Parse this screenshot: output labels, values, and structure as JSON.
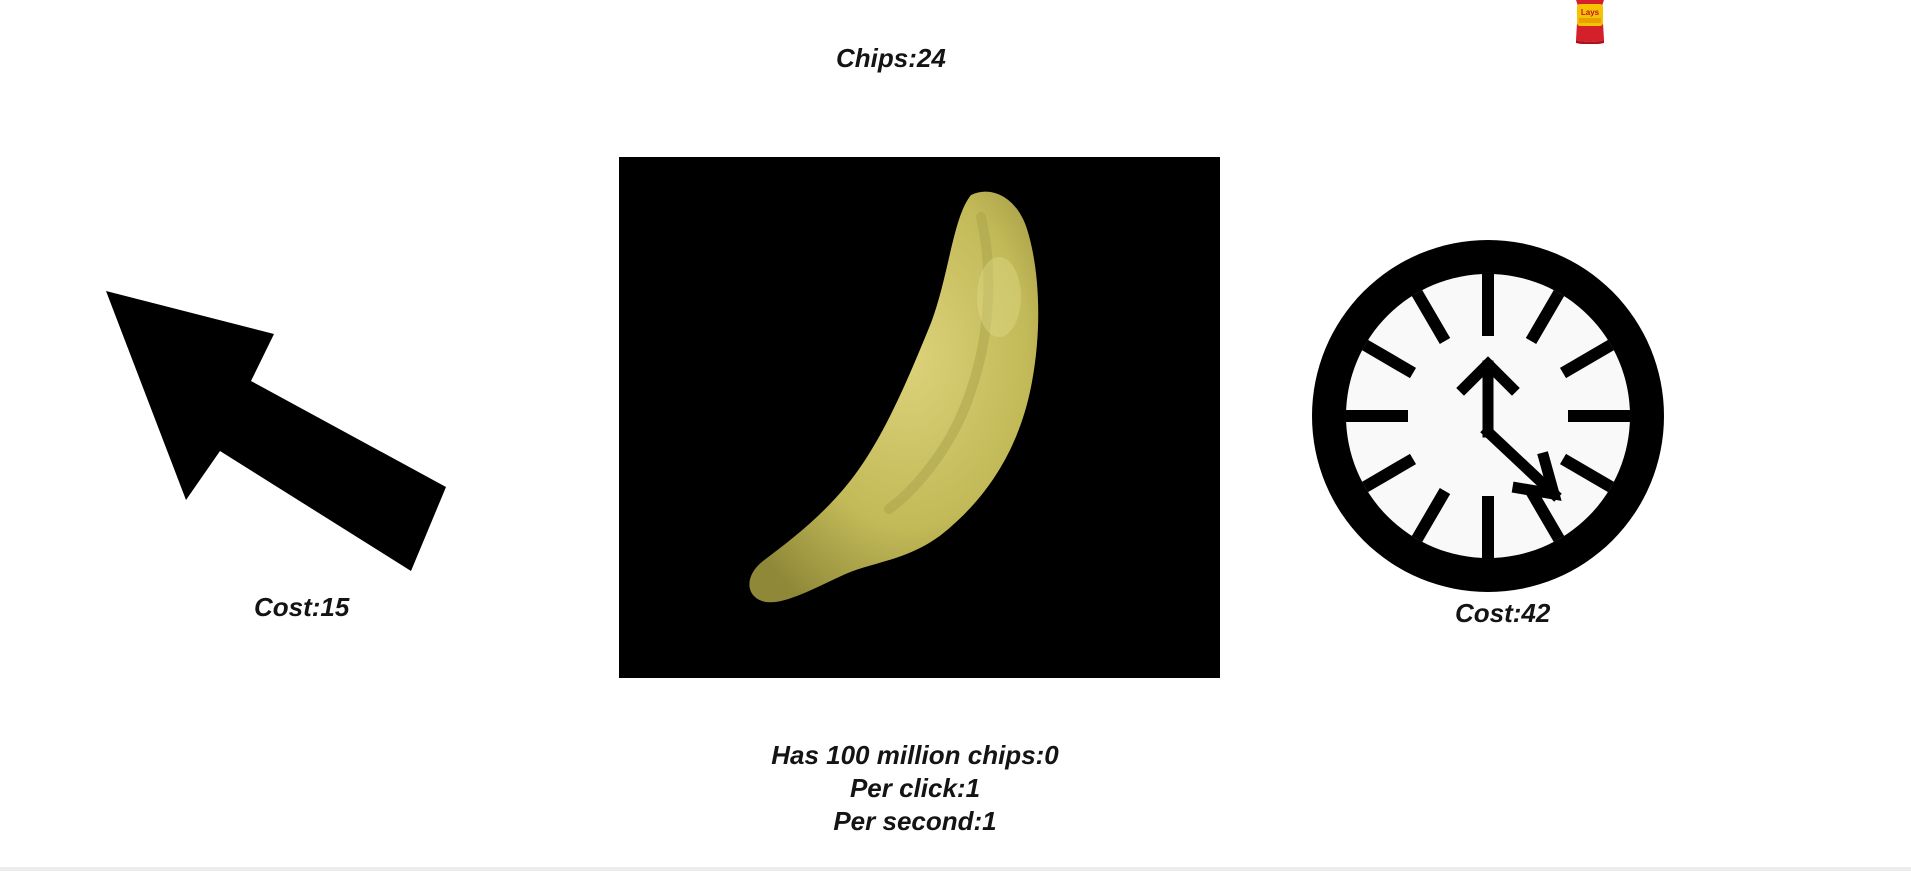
{
  "header": {
    "chips_text": "Chips:24"
  },
  "bag_icon": {
    "icon": "chip-bag-icon",
    "logo_text": "Lays",
    "colors": {
      "bag": "#d4202a",
      "band": "#f5c400"
    }
  },
  "upgrades": {
    "cursor": {
      "icon": "cursor-arrow-icon",
      "cost_text": "Cost:15"
    },
    "clock": {
      "icon": "clock-icon",
      "cost_text": "Cost:42"
    }
  },
  "main_chip": {
    "icon": "potato-chip-icon",
    "colors": {
      "background": "#000000",
      "chip": "#c9c15c"
    }
  },
  "stats": {
    "hundred_million_text": "Has 100 million chips:0",
    "per_click_text": "Per click:1",
    "per_second_text": "Per second:1"
  }
}
